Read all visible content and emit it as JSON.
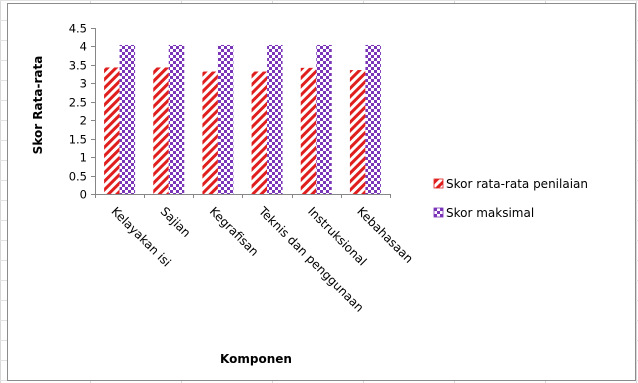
{
  "chart_data": {
    "type": "bar",
    "xlabel": "Komponen",
    "ylabel": "Skor Rata-rata",
    "categories": [
      "Kelayakan isi",
      "Sajian",
      "Kegrafisan",
      "Teknis dan penggunaan",
      "Instruksional",
      "Kebahasaan"
    ],
    "series": [
      {
        "name": "Skor rata-rata  penilaian",
        "values": [
          3.43,
          3.43,
          3.32,
          3.32,
          3.42,
          3.36
        ],
        "color": "#e01e1e",
        "pattern": "diagonal-stripes"
      },
      {
        "name": "Skor maksimal",
        "values": [
          4.04,
          4.04,
          4.04,
          4.04,
          4.04,
          4.04
        ],
        "color": "#7a35b8",
        "pattern": "checkerboard"
      }
    ],
    "ylim": [
      0,
      4.5
    ],
    "yticks": [
      "0",
      "0.5",
      "1",
      "1.5",
      "2",
      "2.5",
      "3",
      "3.5",
      "4",
      "4.5"
    ],
    "grid": false,
    "legend_position": "right"
  }
}
